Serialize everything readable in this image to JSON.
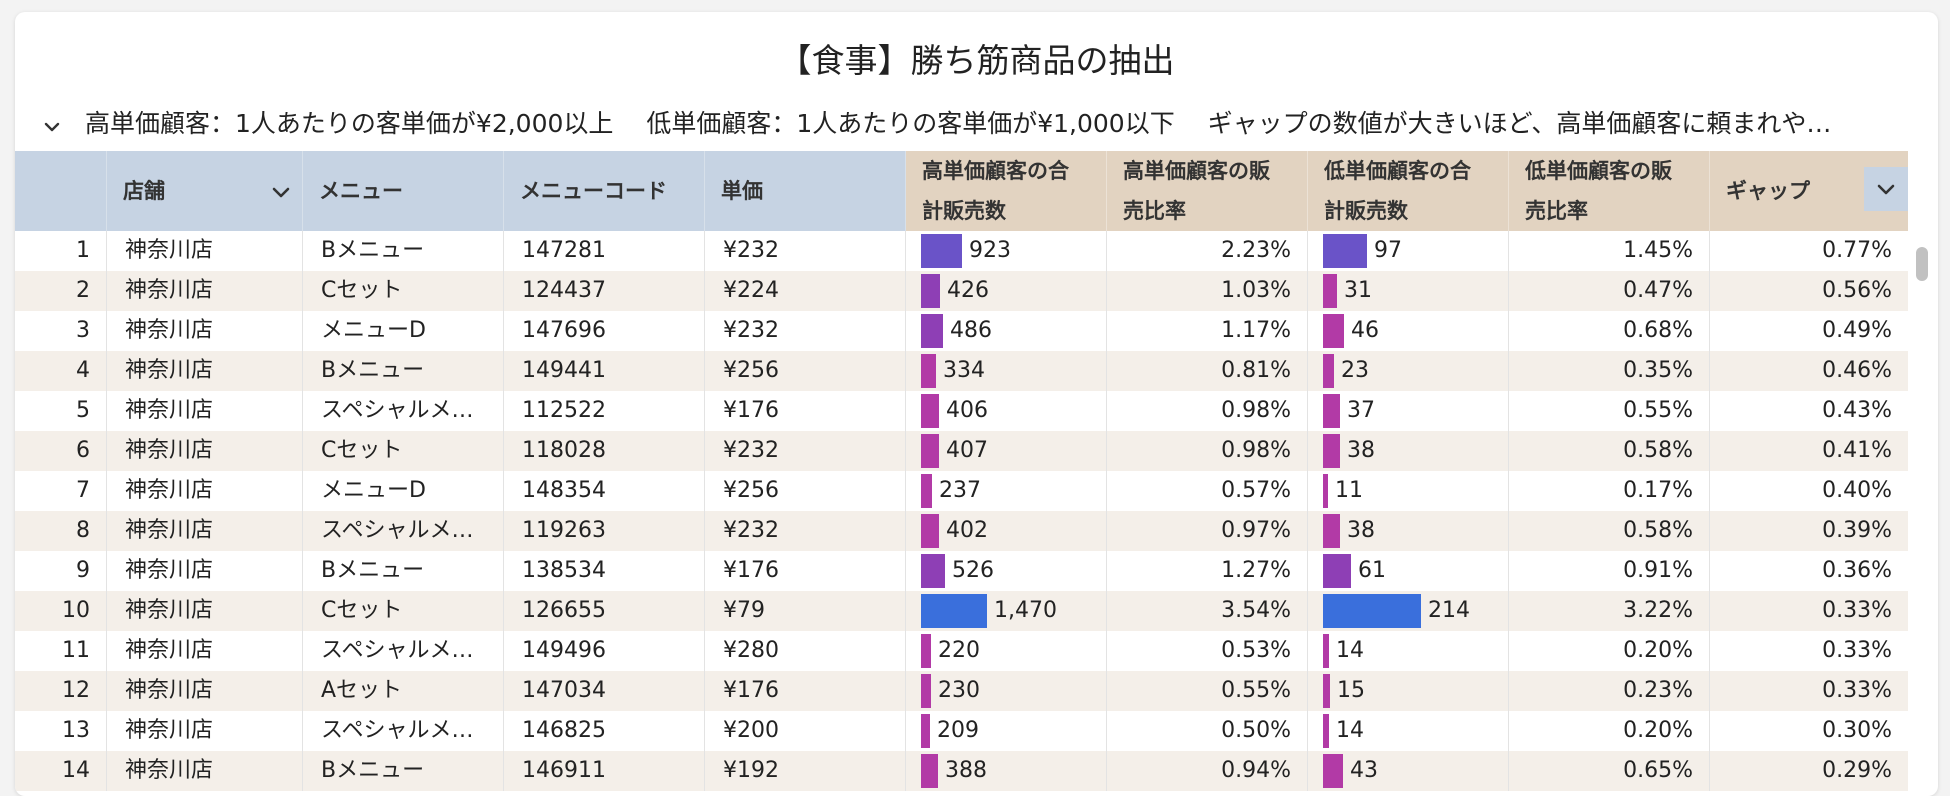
{
  "title": "【食事】勝ち筋商品の抽出",
  "subtitle": "高単価顧客：1人あたりの客単価が¥2,000以上　 低単価顧客：1人あたりの客単価が¥1,000以下　 ギャップの数値が大きいほど、高単価顧客に頼まれや…",
  "columns": [
    "",
    "店舗",
    "メニュー",
    "メニューコード",
    "単価",
    "高単価顧客の合\n計販売数",
    "高単価顧客の販\n売比率",
    "低単価顧客の合\n計販売数",
    "低単価顧客の販\n売比率",
    "ギャップ"
  ],
  "header": {
    "store": "店舗",
    "menu": "メニュー",
    "code": "メニューコード",
    "price": "単価",
    "high_qty_1": "高単価顧客の合",
    "high_qty_2": "計販売数",
    "high_ratio_1": "高単価顧客の販",
    "high_ratio_2": "売比率",
    "low_qty_1": "低単価顧客の合",
    "low_qty_2": "計販売数",
    "low_ratio_1": "低単価顧客の販",
    "low_ratio_2": "売比率",
    "gap": "ギャップ"
  },
  "colors": {
    "header_blue": "#c6d3e3",
    "header_tan": "#e2d3c1",
    "row_alt": "#f4efe9",
    "bar_max": "#3a6fdc",
    "bar_high": "#6a53c8",
    "bar_mid": "#8e3fb5",
    "bar_low": "#b23aa6"
  },
  "rows": [
    {
      "no": "1",
      "store": "神奈川店",
      "menu": "Bメニュー",
      "code": "147281",
      "price": "¥232",
      "high_qty": 923,
      "high_qty_label": "923",
      "high_ratio": "2.23%",
      "low_qty": 97,
      "low_qty_label": "97",
      "low_ratio": "1.45%",
      "gap": "0.77%"
    },
    {
      "no": "2",
      "store": "神奈川店",
      "menu": "Cセット",
      "code": "124437",
      "price": "¥224",
      "high_qty": 426,
      "high_qty_label": "426",
      "high_ratio": "1.03%",
      "low_qty": 31,
      "low_qty_label": "31",
      "low_ratio": "0.47%",
      "gap": "0.56%"
    },
    {
      "no": "3",
      "store": "神奈川店",
      "menu": "メニューD",
      "code": "147696",
      "price": "¥232",
      "high_qty": 486,
      "high_qty_label": "486",
      "high_ratio": "1.17%",
      "low_qty": 46,
      "low_qty_label": "46",
      "low_ratio": "0.68%",
      "gap": "0.49%"
    },
    {
      "no": "4",
      "store": "神奈川店",
      "menu": "Bメニュー",
      "code": "149441",
      "price": "¥256",
      "high_qty": 334,
      "high_qty_label": "334",
      "high_ratio": "0.81%",
      "low_qty": 23,
      "low_qty_label": "23",
      "low_ratio": "0.35%",
      "gap": "0.46%"
    },
    {
      "no": "5",
      "store": "神奈川店",
      "menu": "スペシャルメ…",
      "code": "112522",
      "price": "¥176",
      "high_qty": 406,
      "high_qty_label": "406",
      "high_ratio": "0.98%",
      "low_qty": 37,
      "low_qty_label": "37",
      "low_ratio": "0.55%",
      "gap": "0.43%"
    },
    {
      "no": "6",
      "store": "神奈川店",
      "menu": "Cセット",
      "code": "118028",
      "price": "¥232",
      "high_qty": 407,
      "high_qty_label": "407",
      "high_ratio": "0.98%",
      "low_qty": 38,
      "low_qty_label": "38",
      "low_ratio": "0.58%",
      "gap": "0.41%"
    },
    {
      "no": "7",
      "store": "神奈川店",
      "menu": "メニューD",
      "code": "148354",
      "price": "¥256",
      "high_qty": 237,
      "high_qty_label": "237",
      "high_ratio": "0.57%",
      "low_qty": 11,
      "low_qty_label": "11",
      "low_ratio": "0.17%",
      "gap": "0.40%"
    },
    {
      "no": "8",
      "store": "神奈川店",
      "menu": "スペシャルメ…",
      "code": "119263",
      "price": "¥232",
      "high_qty": 402,
      "high_qty_label": "402",
      "high_ratio": "0.97%",
      "low_qty": 38,
      "low_qty_label": "38",
      "low_ratio": "0.58%",
      "gap": "0.39%"
    },
    {
      "no": "9",
      "store": "神奈川店",
      "menu": "Bメニュー",
      "code": "138534",
      "price": "¥176",
      "high_qty": 526,
      "high_qty_label": "526",
      "high_ratio": "1.27%",
      "low_qty": 61,
      "low_qty_label": "61",
      "low_ratio": "0.91%",
      "gap": "0.36%"
    },
    {
      "no": "10",
      "store": "神奈川店",
      "menu": "Cセット",
      "code": "126655",
      "price": "¥79",
      "high_qty": 1470,
      "high_qty_label": "1,470",
      "high_ratio": "3.54%",
      "low_qty": 214,
      "low_qty_label": "214",
      "low_ratio": "3.22%",
      "gap": "0.33%"
    },
    {
      "no": "11",
      "store": "神奈川店",
      "menu": "スペシャルメ…",
      "code": "149496",
      "price": "¥280",
      "high_qty": 220,
      "high_qty_label": "220",
      "high_ratio": "0.53%",
      "low_qty": 14,
      "low_qty_label": "14",
      "low_ratio": "0.20%",
      "gap": "0.33%"
    },
    {
      "no": "12",
      "store": "神奈川店",
      "menu": "Aセット",
      "code": "147034",
      "price": "¥176",
      "high_qty": 230,
      "high_qty_label": "230",
      "high_ratio": "0.55%",
      "low_qty": 15,
      "low_qty_label": "15",
      "low_ratio": "0.23%",
      "gap": "0.33%"
    },
    {
      "no": "13",
      "store": "神奈川店",
      "menu": "スペシャルメ…",
      "code": "146825",
      "price": "¥200",
      "high_qty": 209,
      "high_qty_label": "209",
      "high_ratio": "0.50%",
      "low_qty": 14,
      "low_qty_label": "14",
      "low_ratio": "0.20%",
      "gap": "0.30%"
    },
    {
      "no": "14",
      "store": "神奈川店",
      "menu": "Bメニュー",
      "code": "146911",
      "price": "¥192",
      "high_qty": 388,
      "high_qty_label": "388",
      "high_ratio": "0.94%",
      "low_qty": 43,
      "low_qty_label": "43",
      "low_ratio": "0.65%",
      "gap": "0.29%"
    }
  ]
}
